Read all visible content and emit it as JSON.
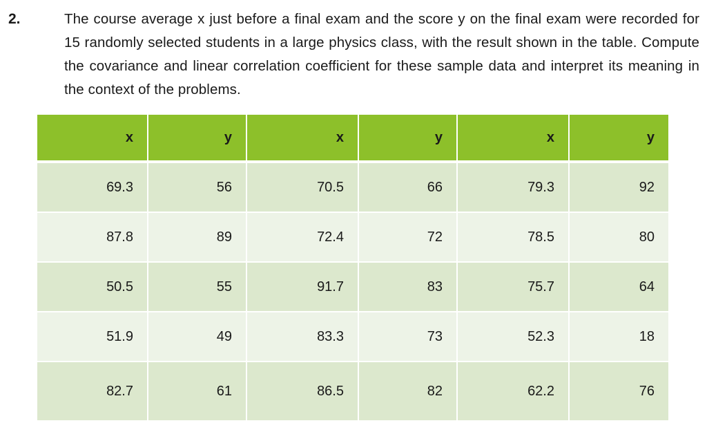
{
  "problem": {
    "number": "2.",
    "text": "The course average x just before a final exam and the score y on the final exam were recorded for 15 randomly selected students in a large physics class, with the result shown in the table. Compute the covariance and linear correlation coefficient for these sample data and interpret its meaning in the context of the problems."
  },
  "table": {
    "headers": [
      "x",
      "y",
      "x",
      "y",
      "x",
      "y"
    ],
    "rows": [
      [
        "69.3",
        "56",
        "70.5",
        "66",
        "79.3",
        "92"
      ],
      [
        "87.8",
        "89",
        "72.4",
        "72",
        "78.5",
        "80"
      ],
      [
        "50.5",
        "55",
        "91.7",
        "83",
        "75.7",
        "64"
      ],
      [
        "51.9",
        "49",
        "83.3",
        "73",
        "52.3",
        "18"
      ],
      [
        "82.7",
        "61",
        "86.5",
        "82",
        "62.2",
        "76"
      ]
    ]
  },
  "colors": {
    "header_green": "#8dc02a",
    "row_dark": "#dce8cd",
    "row_light": "#edf3e7"
  }
}
